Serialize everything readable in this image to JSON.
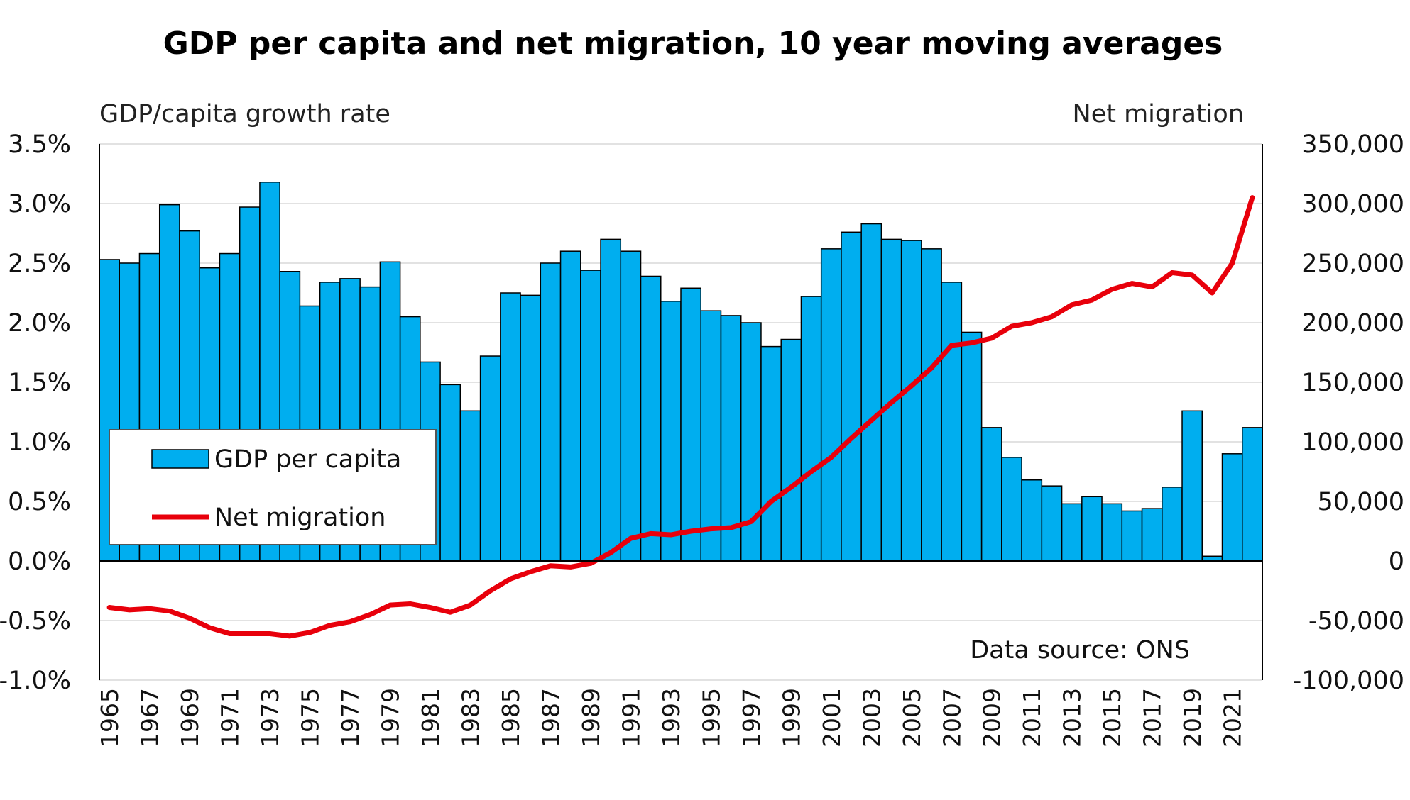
{
  "chart_data": {
    "type": "bar",
    "title": "GDP per capita and net migration, 10 year moving averages",
    "ylabel": "GDP/capita growth rate",
    "y2label": "Net migration",
    "note": "Data source: ONS",
    "ylim": [
      -1.0,
      3.5
    ],
    "y2lim": [
      -100000,
      350000
    ],
    "yticks": [
      "3.5%",
      "3.0%",
      "2.5%",
      "2.0%",
      "1.5%",
      "1.0%",
      "0.5%",
      "0.0%",
      "-0.5%",
      "-1.0%"
    ],
    "y2ticks": [
      "350,000",
      "300,000",
      "250,000",
      "200,000",
      "150,000",
      "100,000",
      "50,000",
      "0",
      "-50,000",
      "-100,000"
    ],
    "x": [
      1965,
      1966,
      1967,
      1968,
      1969,
      1970,
      1971,
      1972,
      1973,
      1974,
      1975,
      1976,
      1977,
      1978,
      1979,
      1980,
      1981,
      1982,
      1983,
      1984,
      1985,
      1986,
      1987,
      1988,
      1989,
      1990,
      1991,
      1992,
      1993,
      1994,
      1995,
      1996,
      1997,
      1998,
      1999,
      2000,
      2001,
      2002,
      2003,
      2004,
      2005,
      2006,
      2007,
      2008,
      2009,
      2010,
      2011,
      2012,
      2013,
      2014,
      2015,
      2016,
      2017,
      2018,
      2019,
      2020,
      2021,
      2022
    ],
    "xticks_shown": [
      "1965",
      "1967",
      "1969",
      "1971",
      "1973",
      "1975",
      "1977",
      "1979",
      "1981",
      "1983",
      "1985",
      "1987",
      "1989",
      "1991",
      "1993",
      "1995",
      "1997",
      "1999",
      "2001",
      "2003",
      "2005",
      "2007",
      "2009",
      "2011",
      "2013",
      "2015",
      "2017",
      "2019",
      "2021"
    ],
    "series": [
      {
        "name": "GDP per capita",
        "type": "bar",
        "axis": "left",
        "color": "#00AEEF",
        "values": [
          2.53,
          2.5,
          2.58,
          2.99,
          2.77,
          2.46,
          2.58,
          2.97,
          3.18,
          2.43,
          2.14,
          2.34,
          2.37,
          2.3,
          2.51,
          2.05,
          1.67,
          1.48,
          1.26,
          1.72,
          2.25,
          2.23,
          2.5,
          2.6,
          2.44,
          2.7,
          2.6,
          2.39,
          2.18,
          2.29,
          2.1,
          2.06,
          2.0,
          1.8,
          1.86,
          2.22,
          2.62,
          2.76,
          2.83,
          2.7,
          2.69,
          2.62,
          2.34,
          1.92,
          1.12,
          0.87,
          0.68,
          0.63,
          0.48,
          0.54,
          0.48,
          0.42,
          0.44,
          0.62,
          1.26,
          0.04,
          0.9,
          1.12
        ]
      },
      {
        "name": "Net migration",
        "type": "line",
        "axis": "right",
        "color": "#E8000B",
        "values": [
          -39000,
          -41000,
          -40000,
          -42000,
          -48000,
          -56000,
          -61000,
          -61000,
          -61000,
          -63000,
          -60000,
          -54000,
          -51000,
          -45000,
          -37000,
          -36000,
          -39000,
          -43000,
          -37000,
          -25000,
          -15000,
          -9000,
          -4000,
          -5000,
          -2000,
          7000,
          19000,
          23000,
          22000,
          25000,
          27000,
          28000,
          33000,
          50000,
          62000,
          75000,
          87000,
          103000,
          118000,
          133000,
          147000,
          162000,
          181000,
          183000,
          187000,
          197000,
          200000,
          205000,
          215000,
          219000,
          228000,
          233000,
          230000,
          242000,
          240000,
          225000,
          250000,
          305000
        ]
      }
    ],
    "legend": "inside bottom-left",
    "grid": true,
    "colors": {
      "bar_fill": "#00AEEF",
      "bar_stroke": "#000000",
      "line": "#E8000B",
      "grid": "#d9d9d9"
    }
  }
}
